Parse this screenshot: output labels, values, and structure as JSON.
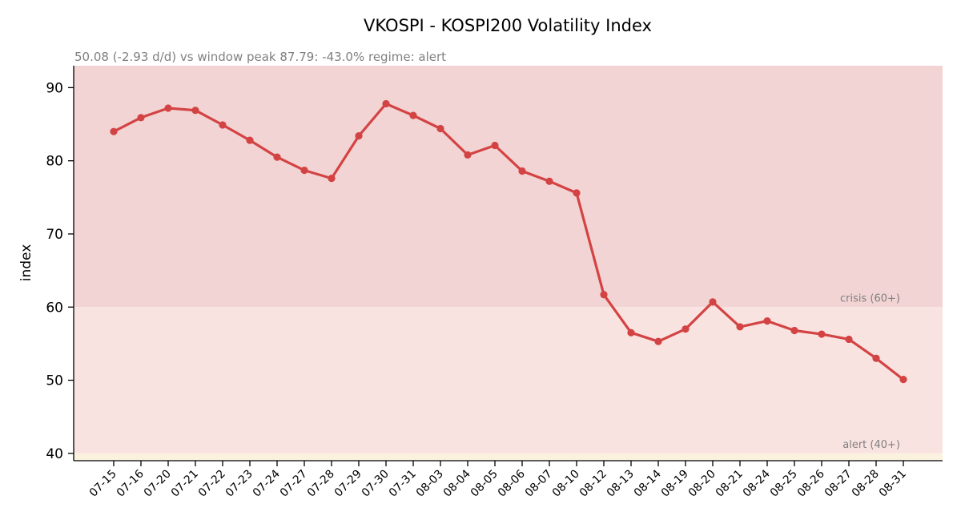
{
  "chart_data": {
    "type": "line",
    "title": "VKOSPI - KOSPI200 Volatility Index",
    "subtitle": "50.08  (-2.93 d/d)   vs window peak 87.79: -43.0%   regime: alert",
    "xlabel": "",
    "ylabel": "index",
    "ylim": [
      39,
      93
    ],
    "yticks": [
      40,
      50,
      60,
      70,
      80,
      90
    ],
    "grid": false,
    "categories": [
      "07-15",
      "07-16",
      "07-20",
      "07-21",
      "07-22",
      "07-23",
      "07-24",
      "07-27",
      "07-28",
      "07-29",
      "07-30",
      "07-31",
      "08-03",
      "08-04",
      "08-05",
      "08-06",
      "08-07",
      "08-10",
      "08-12",
      "08-13",
      "08-14",
      "08-19",
      "08-20",
      "08-21",
      "08-24",
      "08-25",
      "08-26",
      "08-27",
      "08-28",
      "08-31"
    ],
    "series": [
      {
        "values": [
          84.0,
          85.9,
          87.2,
          86.9,
          84.9,
          82.8,
          80.5,
          78.7,
          77.6,
          83.4,
          87.8,
          86.2,
          84.4,
          80.8,
          82.1,
          78.6,
          77.2,
          75.6,
          61.7,
          56.5,
          55.3,
          57.0,
          60.7,
          57.3,
          58.1,
          56.8,
          56.3,
          55.6,
          53.0,
          50.1
        ],
        "color": "#d44343"
      }
    ],
    "bands": [
      {
        "label": "crisis (60+)",
        "from": 60,
        "to": 93,
        "color": "#f2d4d4"
      },
      {
        "label": "alert (40+)",
        "from": 40,
        "to": 60,
        "color": "#f9e3e1"
      },
      {
        "label": "",
        "from": 39,
        "to": 40,
        "color": "#fbf1df"
      }
    ]
  }
}
